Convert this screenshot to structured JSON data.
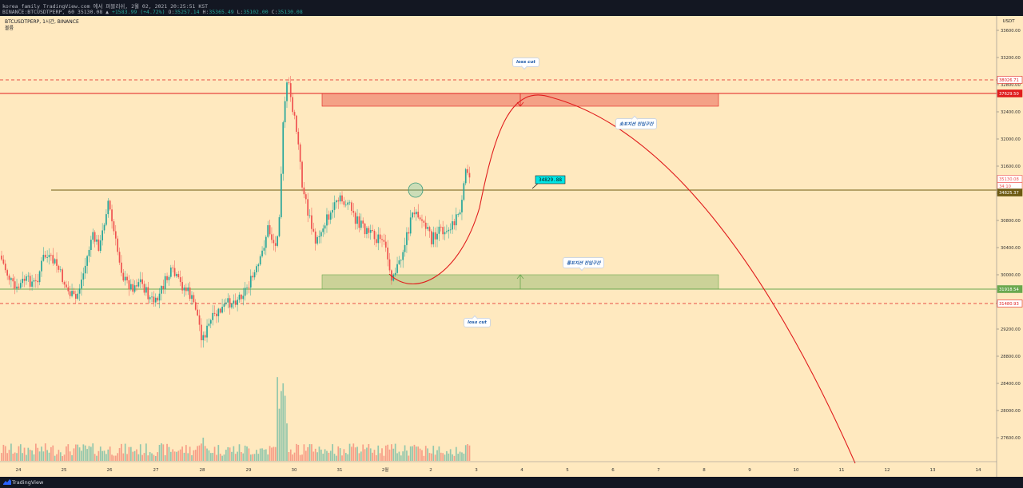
{
  "header": {
    "line1": "korea_family TradingView.com 에서 퍼블리쉬, 2월 02, 2021 20:25:51 KST",
    "ohlc_prefix": "BINANCE:BTCUSDTPERP, 60 35130.08 ▲",
    "ohlc_change": "+1583.99 (+4.72%)",
    "o_label": "O:",
    "o_value": "35257.14",
    "h_label": "H:",
    "h_value": "35365.49",
    "l_label": "L:",
    "l_value": "35102.00",
    "c_label": "C:",
    "c_value": "35130.08"
  },
  "legend": {
    "symbol": "BTCUSDTPERP, 1시간, BINANCE",
    "volume": "볼륨"
  },
  "footer": {
    "brand": "TradingView"
  },
  "colors": {
    "background": "#ffe9bf",
    "up": "#26a69a",
    "down": "#ef5350",
    "red_line": "#e01d1d",
    "olive_line": "#6d5a12",
    "green_line": "#6aa84f",
    "highlight_label": "#00e5e5"
  },
  "chart_data": {
    "type": "candlestick",
    "symbol": "BINANCE:BTCUSDTPERP",
    "interval": "60",
    "currency": "USDT",
    "ylim": [
      26800,
      29800
    ],
    "y_ticks": [
      27200,
      27600,
      28000,
      28400,
      28800,
      29200,
      29600,
      30000,
      30400,
      30800,
      31200,
      31600,
      32000,
      32400,
      32800,
      33200,
      33600,
      34000,
      34400,
      34800,
      35200,
      35600,
      36000,
      36400,
      36800,
      37200,
      37600,
      38000,
      38400,
      38800,
      39200,
      39600
    ],
    "x_labels": [
      "24",
      "25",
      "26",
      "27",
      "28",
      "29",
      "30",
      "31",
      "2월",
      "2",
      "3",
      "4",
      "5",
      "6",
      "7",
      "8",
      "9",
      "10",
      "11",
      "12",
      "13",
      "14"
    ],
    "price_labels": [
      {
        "value": "38026.71",
        "style": "red"
      },
      {
        "value": "37629.50",
        "style": "red_solid"
      },
      {
        "value": "35130.08",
        "style": "down"
      },
      {
        "value": "34:10",
        "style": "down_small"
      },
      {
        "value": "34825.37",
        "style": "olive"
      },
      {
        "value": "31918.54",
        "style": "green"
      },
      {
        "value": "31480.93",
        "style": "red"
      }
    ],
    "horizontal_levels": [
      {
        "price": 38026.71,
        "style": "dashed",
        "color": "red"
      },
      {
        "price": 37629.5,
        "style": "solid",
        "color": "red"
      },
      {
        "price": 34825.37,
        "style": "solid",
        "color": "olive"
      },
      {
        "price": 31918.54,
        "style": "solid",
        "color": "green"
      },
      {
        "price": 31480.93,
        "style": "dashed",
        "color": "red"
      }
    ],
    "zones": [
      {
        "name": "resistance",
        "from": 37250,
        "to": 37640,
        "color": "red"
      },
      {
        "name": "support",
        "from": 31920,
        "to": 32380,
        "color": "green"
      }
    ],
    "price_note": "34829.88",
    "callouts": {
      "loss_cut_top": "loss cut",
      "short_zone": "숏포지션 진입구간",
      "long_zone": "롱포지션 진입구간",
      "loss_cut_bottom": "loss cut"
    }
  }
}
